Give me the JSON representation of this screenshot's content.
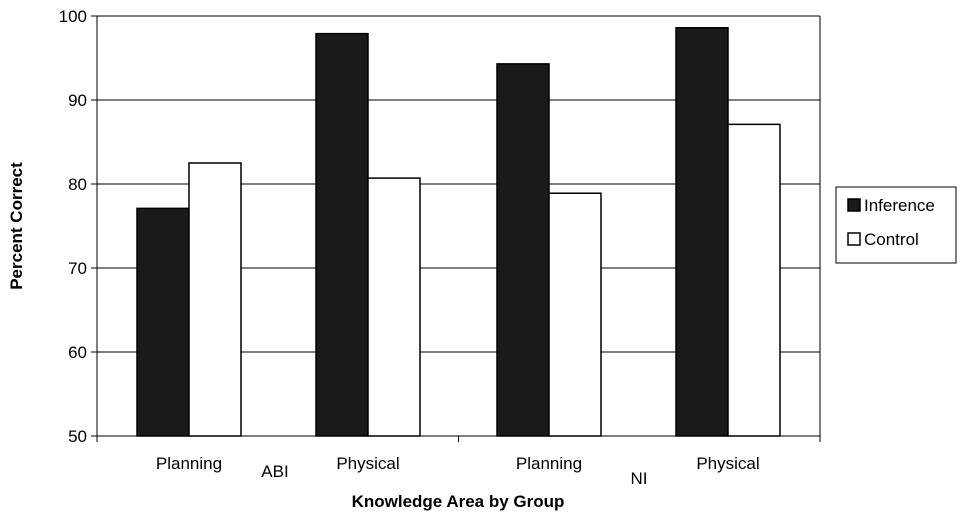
{
  "chart_data": {
    "type": "bar",
    "title": "",
    "xlabel": "Knowledge Area by Group",
    "ylabel": "Percent Correct",
    "ylim": [
      50,
      100
    ],
    "yticks": [
      50,
      60,
      70,
      80,
      90,
      100
    ],
    "grid": true,
    "legend_position": "right",
    "groups": [
      "ABI",
      "NI"
    ],
    "categories": [
      "Planning",
      "Physical",
      "Planning",
      "Physical"
    ],
    "category_groups": [
      "ABI",
      "ABI",
      "NI",
      "NI"
    ],
    "series": [
      {
        "name": "Inference",
        "color": "#1a1a1a",
        "values": [
          77.1,
          97.9,
          94.3,
          98.6
        ]
      },
      {
        "name": "Control",
        "color": "#ffffff",
        "values": [
          82.5,
          80.7,
          78.9,
          87.1
        ]
      }
    ]
  }
}
